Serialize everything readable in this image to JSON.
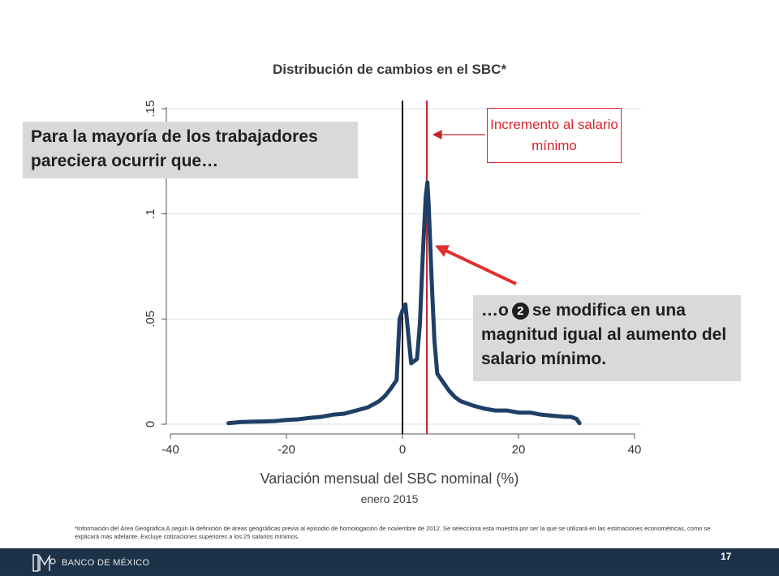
{
  "chart_data": {
    "type": "line",
    "title": "Distribución de cambios en el SBC*",
    "xlabel": "Variación mensual del SBC nominal (%)",
    "xsub": "enero 2015",
    "ylabel": "",
    "xlim": [
      -40,
      40
    ],
    "ylim": [
      0,
      0.15
    ],
    "x_ticks": [
      -40,
      -20,
      0,
      20,
      40
    ],
    "x_tick_labels": [
      "-40",
      "-20",
      "0",
      "20",
      "40"
    ],
    "y_ticks": [
      0,
      0.05,
      0.1,
      0.15
    ],
    "y_tick_labels": [
      "0",
      ".05",
      ".1",
      ".15"
    ],
    "grid": true,
    "reference_lines": [
      {
        "x": 0,
        "color": "#000000"
      },
      {
        "x": 4.2,
        "color": "#c0272d"
      }
    ],
    "series": [
      {
        "color": "#1f3f66",
        "x": [
          -30,
          -28,
          -26,
          -24,
          -22,
          -20,
          -18,
          -16,
          -14,
          -12,
          -10,
          -8,
          -6,
          -5,
          -4,
          -3,
          -2,
          -1.5,
          -1,
          -0.5,
          0,
          0.5,
          1,
          1.5,
          2,
          2.5,
          3,
          3.5,
          4,
          4.3,
          4.5,
          5,
          5.5,
          6,
          7,
          8,
          9,
          10,
          12,
          14,
          16,
          18,
          20,
          22,
          24,
          26,
          28,
          29,
          30,
          30.5
        ],
        "values": [
          0.0005,
          0.001,
          0.0012,
          0.0013,
          0.0015,
          0.002,
          0.0023,
          0.003,
          0.0035,
          0.0045,
          0.005,
          0.0065,
          0.008,
          0.0095,
          0.011,
          0.0135,
          0.017,
          0.019,
          0.021,
          0.05,
          0.054,
          0.057,
          0.043,
          0.029,
          0.03,
          0.031,
          0.048,
          0.08,
          0.108,
          0.115,
          0.105,
          0.07,
          0.04,
          0.024,
          0.02,
          0.016,
          0.013,
          0.011,
          0.009,
          0.0075,
          0.0065,
          0.0065,
          0.0055,
          0.0055,
          0.0045,
          0.004,
          0.0035,
          0.0035,
          0.0025,
          0.0005
        ]
      }
    ]
  },
  "callouts": {
    "left_text": "Para la mayoría de los trabajadores pareciera ocurrir que…",
    "right_prefix": "…o",
    "right_number": "2",
    "right_rest": "se modifica en una magnitud igual al aumento del salario mínimo.",
    "red_box": "Incremento al salario mínimo"
  },
  "footnote": "*Información del Área Geográfica A según la definición de áreas geográficas previa al episodio de homologación de noviembre de 2012. Se selecciona esta muestra por ser la que se utilizará en las estimaciones econométricas, como se explicará más adelante. Excluye cotizaciones superiores a los 25 salarios mínimos.",
  "footer": {
    "brand": "BANCO DE MÉXICO",
    "page_number": "17",
    "background": "#1b3248"
  },
  "colors": {
    "series": "#1f3f66",
    "reference_red": "#c0272d",
    "arrow_red": "#e0302f",
    "grid": "#dbe7ea"
  }
}
